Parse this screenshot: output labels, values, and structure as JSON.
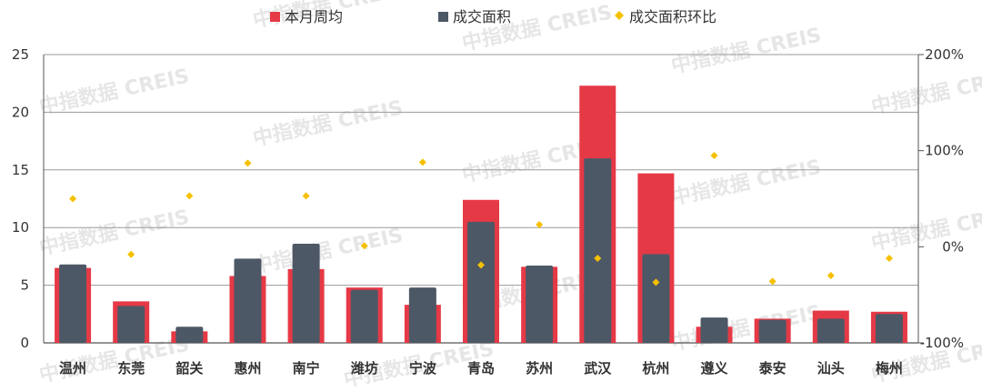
{
  "chart_data": {
    "type": "bar",
    "categories": [
      "温州",
      "东莞",
      "韶关",
      "惠州",
      "南宁",
      "潍坊",
      "宁波",
      "青岛",
      "苏州",
      "武汉",
      "杭州",
      "遵义",
      "泰安",
      "汕头",
      "梅州"
    ],
    "series": [
      {
        "name": "本月周均",
        "type": "bar",
        "axis": "left",
        "color": "#e63946",
        "values": [
          6.5,
          3.6,
          1.0,
          5.8,
          6.4,
          4.8,
          3.3,
          12.4,
          6.6,
          22.3,
          14.7,
          1.4,
          2.1,
          2.8,
          2.7
        ]
      },
      {
        "name": "成交面积",
        "type": "bar",
        "axis": "left",
        "color": "#4d5866",
        "values": [
          6.8,
          3.2,
          1.4,
          7.3,
          8.6,
          4.6,
          4.8,
          10.5,
          6.7,
          16.0,
          7.7,
          2.2,
          2.0,
          2.1,
          2.5
        ]
      },
      {
        "name": "成交面积环比",
        "type": "scatter",
        "axis": "right",
        "color": "#f5c000",
        "values": [
          50,
          -8,
          53,
          87,
          53,
          1,
          88,
          -19,
          23,
          -12,
          -37,
          95,
          -36,
          -30,
          -12
        ]
      }
    ],
    "ylim_left": [
      0,
      25
    ],
    "yticks_left": [
      "0",
      "5",
      "10",
      "15",
      "20",
      "25"
    ],
    "ylim_right": [
      -100,
      200
    ],
    "yticks_right": [
      "-100%",
      "0%",
      "100%",
      "200%"
    ],
    "grid": true,
    "legend_position": "top",
    "watermark": "中指数据 CREIS"
  }
}
